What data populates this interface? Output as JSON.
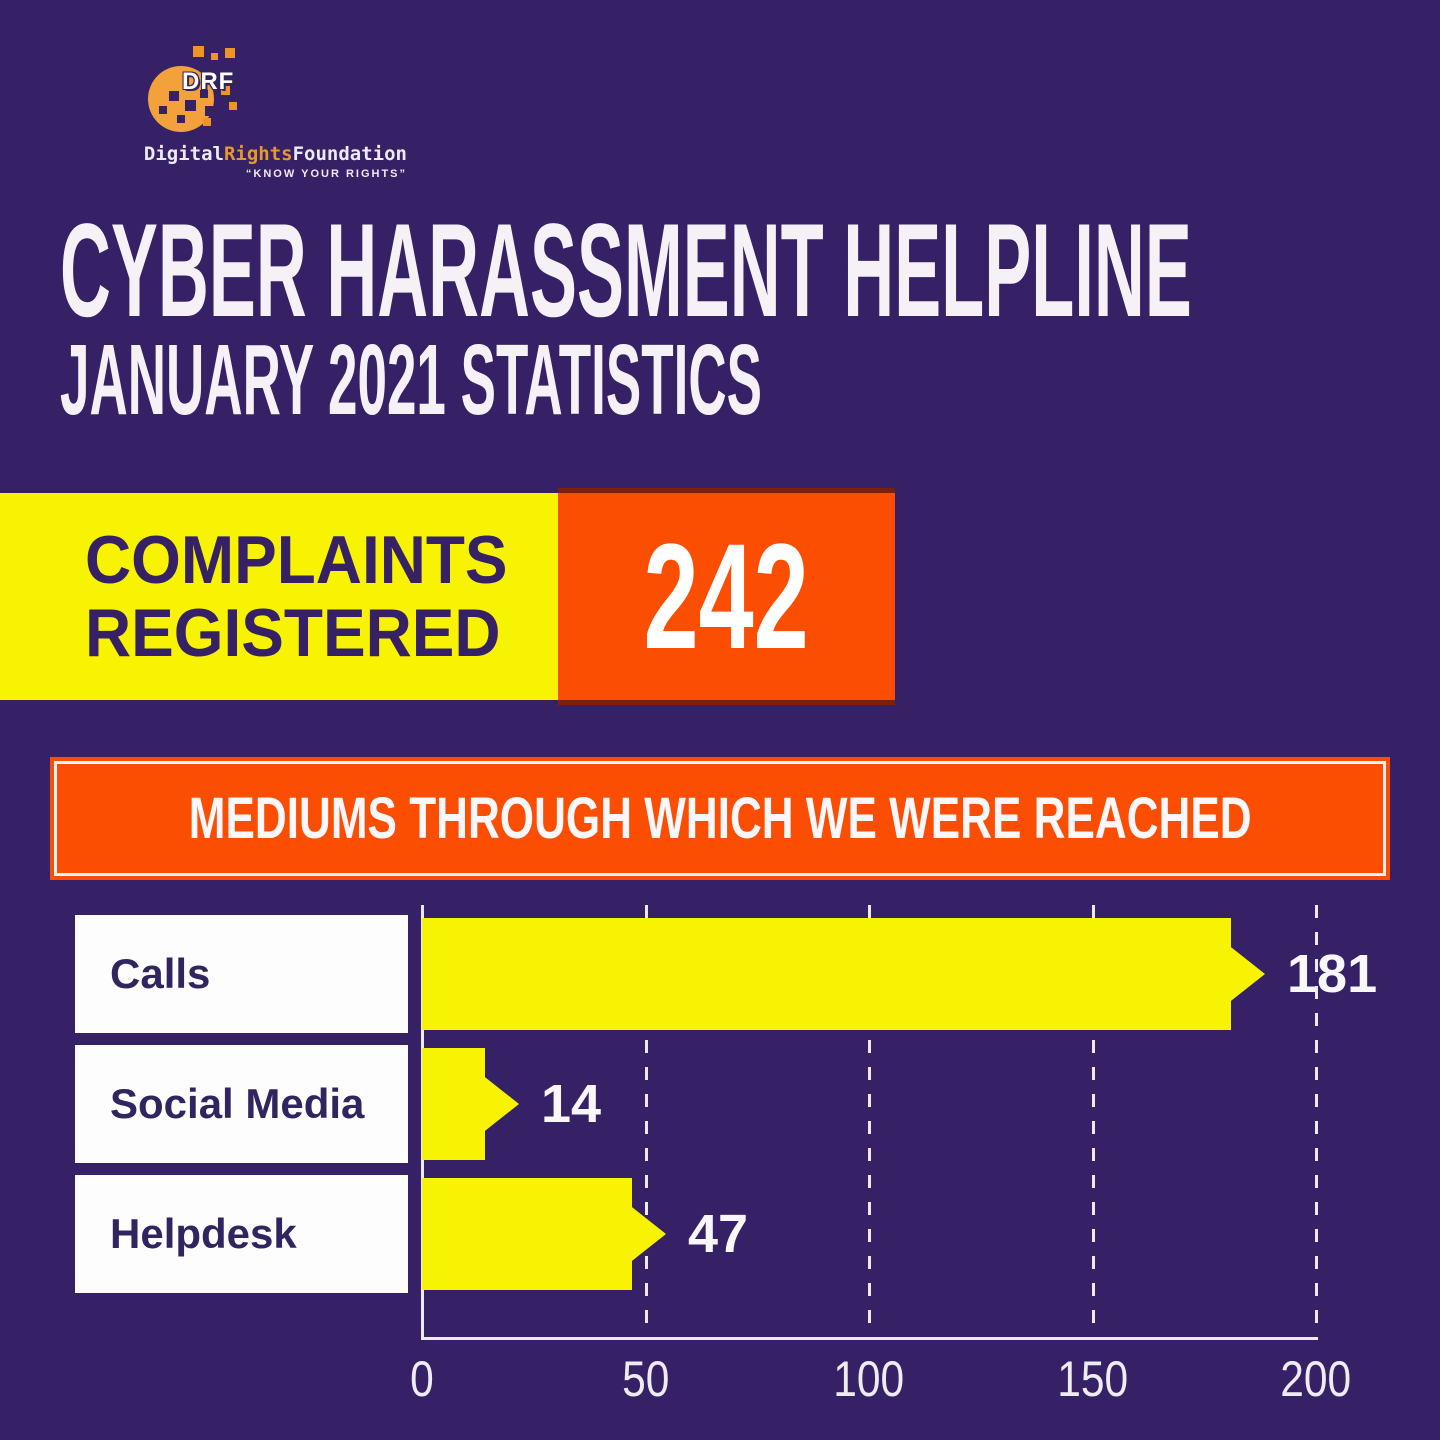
{
  "colors": {
    "background": "#362167",
    "yellow": "#F8F300",
    "orange": "#FC4E03",
    "text_light": "#F5F1F7",
    "text_purple": "#32245E",
    "logo_amber": "#F2A13B"
  },
  "logo": {
    "acronym": "DRF",
    "wordmark_part1": "Digital",
    "wordmark_part2": "Rights",
    "wordmark_part3": "Foundation",
    "tagline": "“KNOW YOUR RIGHTS”"
  },
  "header": {
    "title": "CYBER HARASSMENT HELPLINE",
    "subtitle": "JANUARY 2021 STATISTICS"
  },
  "complaints": {
    "label_line1": "COMPLAINTS",
    "label_line2": "REGISTERED",
    "value": "242"
  },
  "chart_data": {
    "type": "bar",
    "orientation": "horizontal",
    "title": "MEDIUMS THROUGH WHICH WE WERE REACHED",
    "categories": [
      "Calls",
      "Social Media",
      "Helpdesk"
    ],
    "values": [
      181,
      14,
      47
    ],
    "xlim": [
      0,
      200
    ],
    "xticks": [
      0,
      50,
      100,
      150,
      200
    ],
    "xlabel": "",
    "ylabel": "",
    "grid": "dashed-vertical",
    "bar_color": "#F8F300",
    "value_labels": [
      "181",
      "14",
      "47"
    ]
  }
}
